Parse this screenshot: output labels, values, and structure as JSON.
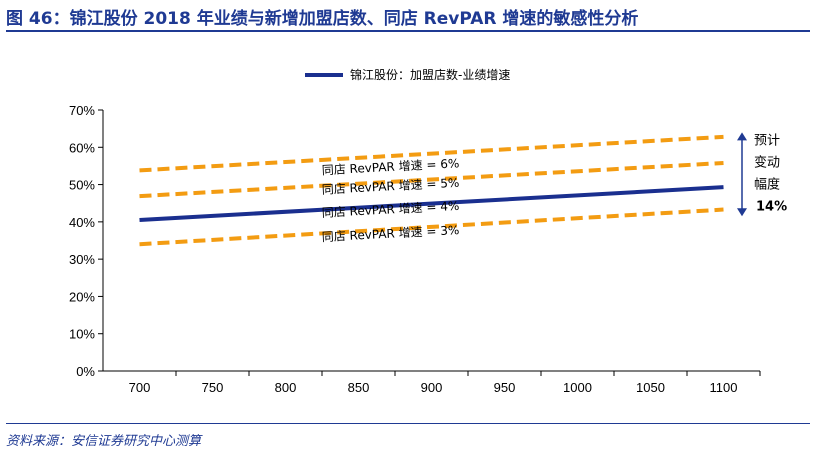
{
  "header": {
    "title": "图 46：锦江股份 2018 年业绩与新增加盟店数、同店 RevPAR 增速的敏感性分析"
  },
  "footer": {
    "source": "资料来源：安信证券研究中心测算"
  },
  "colors": {
    "brand": "#1f3a93",
    "main_series": "#1a2f8f",
    "dashed_series": "#f39c12"
  },
  "chart_data": {
    "type": "line",
    "x": [
      700,
      1100
    ],
    "xticks": [
      "700",
      "750",
      "800",
      "850",
      "900",
      "950",
      "1000",
      "1050",
      "1100"
    ],
    "yticks": [
      "0%",
      "10%",
      "20%",
      "30%",
      "40%",
      "50%",
      "60%",
      "70%"
    ],
    "xlim": [
      675,
      1125
    ],
    "ylim": [
      0,
      70
    ],
    "grid": false,
    "legend_position": "top-center",
    "legend": "锦江股份：加盟店数-业绩增速",
    "series": [
      {
        "name": "锦江股份：加盟店数-业绩增速",
        "style": "solid",
        "values": [
          40.5,
          49.3
        ]
      },
      {
        "style": "dashed",
        "values": [
          53.8,
          62.8
        ]
      },
      {
        "style": "dashed",
        "values": [
          46.9,
          55.8
        ]
      },
      {
        "style": "dashed",
        "values": [
          34.0,
          43.3
        ]
      }
    ],
    "annotations": [
      {
        "text": "同店 RevPAR 增速 = 6%",
        "x": 825,
        "y": 52.7
      },
      {
        "text": "同店 RevPAR 增速 = 5%",
        "x": 825,
        "y": 47.5
      },
      {
        "text": "同店 RevPAR 增速 = 4%",
        "x": 825,
        "y": 41.3
      },
      {
        "text": "同店 RevPAR 增速 = 3%",
        "x": 825,
        "y": 34.8
      }
    ],
    "range_label": {
      "lines": [
        "预计",
        "变动",
        "幅度"
      ],
      "value": "14%",
      "from": 41.5,
      "to": 64.0
    }
  }
}
